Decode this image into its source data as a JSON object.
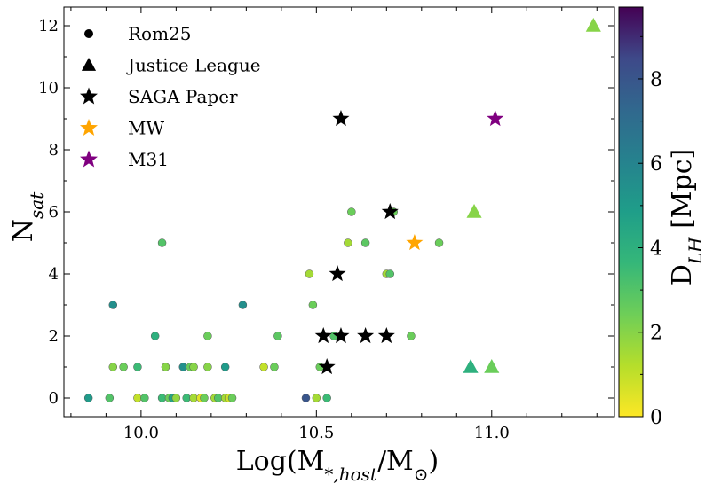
{
  "chart_data": {
    "type": "scatter",
    "xlabel": "Log(M_{*,host}/M_⊙)",
    "ylabel": "N_{sat}",
    "xlim": [
      9.78,
      11.35
    ],
    "ylim": [
      -0.6,
      12.6
    ],
    "xticks": [
      10.0,
      10.5,
      11.0
    ],
    "xtick_labels": [
      "10.0",
      "10.5",
      "11.0"
    ],
    "yticks": [
      0,
      2,
      4,
      6,
      8,
      10,
      12
    ],
    "ytick_labels": [
      "0",
      "2",
      "4",
      "6",
      "8",
      "10",
      "12"
    ],
    "grid": false,
    "legend_position": "top-left",
    "colorbar": {
      "label": "D_{LH} [Mpc]",
      "range": [
        0,
        9.7
      ],
      "colormap": "viridis",
      "ticks": [
        0,
        2,
        4,
        6,
        8
      ],
      "tick_labels": [
        "0",
        "2",
        "4",
        "6",
        "8"
      ]
    },
    "legend": [
      {
        "name": "Rom25",
        "marker": "circle",
        "color": "#000000"
      },
      {
        "name": "Justice League",
        "marker": "triangle",
        "color": "#000000"
      },
      {
        "name": "SAGA Paper",
        "marker": "star",
        "color": "#000000"
      },
      {
        "name": "MW",
        "marker": "star",
        "color": "#FFA500"
      },
      {
        "name": "M31",
        "marker": "star",
        "color": "#800080"
      }
    ],
    "series": [
      {
        "name": "Rom25",
        "marker": "circle",
        "color_by": "D_LH",
        "points": [
          {
            "x": 9.85,
            "y": 0,
            "d": 5.0
          },
          {
            "x": 9.91,
            "y": 0,
            "d": 3.0
          },
          {
            "x": 9.92,
            "y": 3,
            "d": 5.5
          },
          {
            "x": 9.92,
            "y": 1,
            "d": 2.0
          },
          {
            "x": 9.95,
            "y": 1,
            "d": 2.5
          },
          {
            "x": 9.99,
            "y": 1,
            "d": 3.5
          },
          {
            "x": 9.99,
            "y": 0,
            "d": 1.0
          },
          {
            "x": 10.01,
            "y": 0,
            "d": 3.0
          },
          {
            "x": 10.04,
            "y": 2,
            "d": 4.0
          },
          {
            "x": 10.06,
            "y": 0,
            "d": 3.5
          },
          {
            "x": 10.06,
            "y": 5,
            "d": 3.0
          },
          {
            "x": 10.07,
            "y": 1,
            "d": 1.5
          },
          {
            "x": 10.07,
            "y": 1,
            "d": 2.0
          },
          {
            "x": 10.08,
            "y": 0,
            "d": 2.5
          },
          {
            "x": 10.09,
            "y": 0,
            "d": 4.5
          },
          {
            "x": 10.1,
            "y": 0,
            "d": 1.8
          },
          {
            "x": 10.12,
            "y": 1,
            "d": 5.5
          },
          {
            "x": 10.13,
            "y": 0,
            "d": 3.5
          },
          {
            "x": 10.14,
            "y": 1,
            "d": 2.5
          },
          {
            "x": 10.15,
            "y": 1,
            "d": 2.0
          },
          {
            "x": 10.15,
            "y": 0,
            "d": 1.5
          },
          {
            "x": 10.17,
            "y": 0,
            "d": 0.5
          },
          {
            "x": 10.18,
            "y": 0,
            "d": 2.5
          },
          {
            "x": 10.19,
            "y": 1,
            "d": 2.0
          },
          {
            "x": 10.19,
            "y": 2,
            "d": 2.5
          },
          {
            "x": 10.21,
            "y": 0,
            "d": 1.5
          },
          {
            "x": 10.22,
            "y": 0,
            "d": 3.0
          },
          {
            "x": 10.24,
            "y": 1,
            "d": 5.0
          },
          {
            "x": 10.24,
            "y": 0,
            "d": 1.5
          },
          {
            "x": 10.25,
            "y": 0,
            "d": 0.8
          },
          {
            "x": 10.26,
            "y": 0,
            "d": 2.5
          },
          {
            "x": 10.29,
            "y": 3,
            "d": 5.5
          },
          {
            "x": 10.35,
            "y": 1,
            "d": 1.0
          },
          {
            "x": 10.38,
            "y": 1,
            "d": 2.5
          },
          {
            "x": 10.39,
            "y": 2,
            "d": 2.8
          },
          {
            "x": 10.47,
            "y": 0,
            "d": 8.0
          },
          {
            "x": 10.48,
            "y": 4,
            "d": 1.5
          },
          {
            "x": 10.49,
            "y": 3,
            "d": 2.5
          },
          {
            "x": 10.5,
            "y": 0,
            "d": 1.5
          },
          {
            "x": 10.51,
            "y": 1,
            "d": 2.5
          },
          {
            "x": 10.53,
            "y": 0,
            "d": 3.5
          },
          {
            "x": 10.55,
            "y": 2,
            "d": 3.0
          },
          {
            "x": 10.57,
            "y": 2,
            "d": 2.0
          },
          {
            "x": 10.59,
            "y": 5,
            "d": 1.5
          },
          {
            "x": 10.6,
            "y": 6,
            "d": 2.5
          },
          {
            "x": 10.64,
            "y": 5,
            "d": 2.8
          },
          {
            "x": 10.7,
            "y": 4,
            "d": 1.5
          },
          {
            "x": 10.71,
            "y": 4,
            "d": 3.0
          },
          {
            "x": 10.72,
            "y": 6,
            "d": 2.5
          },
          {
            "x": 10.77,
            "y": 2,
            "d": 2.5
          },
          {
            "x": 10.85,
            "y": 5,
            "d": 2.5
          }
        ]
      },
      {
        "name": "Justice League",
        "marker": "triangle",
        "color_by": "D_LH",
        "points": [
          {
            "x": 11.29,
            "y": 12,
            "d": 2.0
          },
          {
            "x": 10.95,
            "y": 6,
            "d": 2.0
          },
          {
            "x": 10.94,
            "y": 1,
            "d": 4.0
          },
          {
            "x": 11.0,
            "y": 1,
            "d": 2.5
          }
        ]
      },
      {
        "name": "SAGA Paper",
        "marker": "star",
        "color": "#000000",
        "points": [
          {
            "x": 10.57,
            "y": 9
          },
          {
            "x": 10.71,
            "y": 6
          },
          {
            "x": 10.56,
            "y": 4
          },
          {
            "x": 10.52,
            "y": 2
          },
          {
            "x": 10.57,
            "y": 2
          },
          {
            "x": 10.64,
            "y": 2
          },
          {
            "x": 10.7,
            "y": 2
          },
          {
            "x": 10.53,
            "y": 1
          }
        ]
      },
      {
        "name": "MW",
        "marker": "star",
        "color": "#FFA500",
        "points": [
          {
            "x": 10.78,
            "y": 5
          }
        ]
      },
      {
        "name": "M31",
        "marker": "star",
        "color": "#800080",
        "points": [
          {
            "x": 11.01,
            "y": 9
          }
        ]
      }
    ]
  }
}
